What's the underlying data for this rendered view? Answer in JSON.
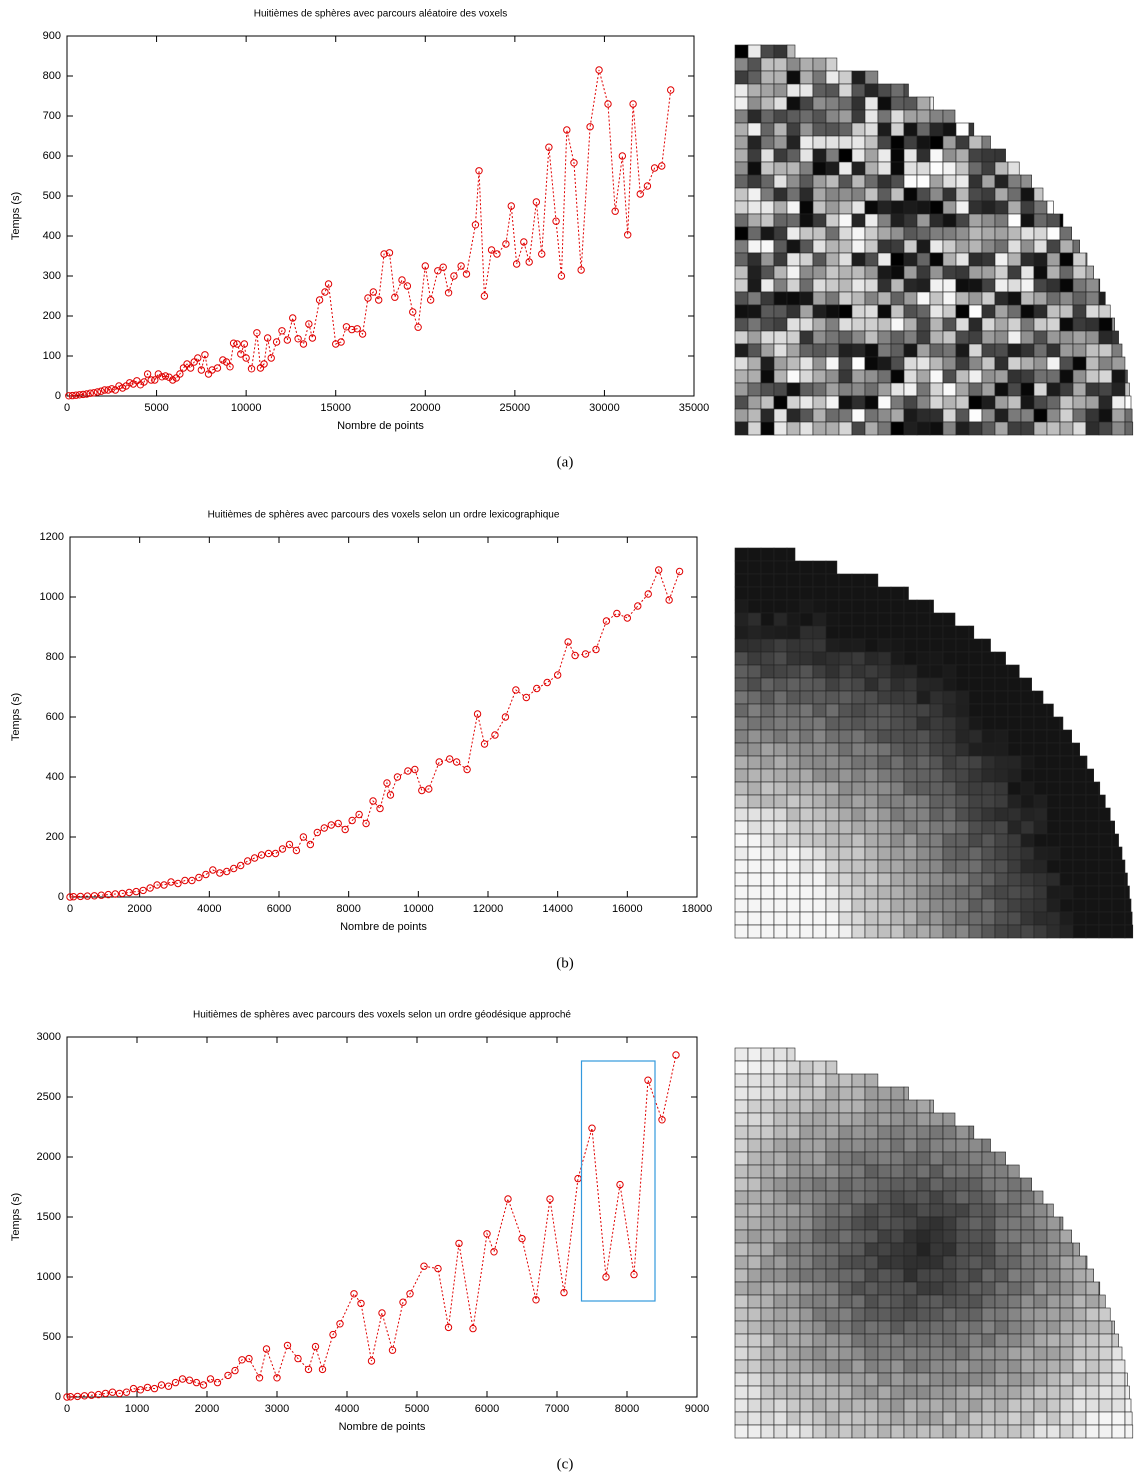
{
  "chart_data": [
    {
      "type": "line",
      "title": "Huitièmes de sphères avec parcours aléatoire des voxels",
      "x_label": "Nombre de points",
      "y_label": "Temps (s)",
      "caption": "(a)",
      "color": "#e00000",
      "xlim": [
        0,
        35000
      ],
      "xticks": [
        0,
        5000,
        10000,
        15000,
        20000,
        25000,
        30000,
        35000
      ],
      "ylim": [
        0,
        900
      ],
      "yticks": [
        0,
        100,
        200,
        300,
        400,
        500,
        600,
        700,
        800,
        900
      ],
      "x": [
        100,
        300,
        500,
        700,
        900,
        1100,
        1300,
        1500,
        1700,
        1900,
        2100,
        2300,
        2500,
        2700,
        2900,
        3100,
        3300,
        3500,
        3700,
        3900,
        4100,
        4300,
        4500,
        4700,
        4900,
        5100,
        5300,
        5500,
        5700,
        5900,
        6100,
        6300,
        6500,
        6700,
        6900,
        7100,
        7300,
        7500,
        7700,
        7900,
        8100,
        8400,
        8700,
        8900,
        9100,
        9300,
        9500,
        9700,
        9900,
        10000,
        10300,
        10600,
        10800,
        11000,
        11200,
        11400,
        11700,
        12000,
        12300,
        12600,
        12900,
        13200,
        13500,
        13700,
        14100,
        14400,
        14600,
        15000,
        15300,
        15600,
        15900,
        16200,
        16500,
        16800,
        17100,
        17400,
        17700,
        18000,
        18300,
        18700,
        19000,
        19300,
        19600,
        20000,
        20300,
        20700,
        21000,
        21300,
        21600,
        22000,
        22300,
        22800,
        23000,
        23300,
        23700,
        24000,
        24500,
        24800,
        25100,
        25500,
        25800,
        26200,
        26500,
        26900,
        27300,
        27600,
        27900,
        28300,
        28700,
        29200,
        29700,
        30200,
        30600,
        31000,
        31300,
        31600,
        32000,
        32400,
        32800,
        33200,
        33700
      ],
      "values": [
        0.5,
        1,
        2,
        3,
        4,
        5,
        7,
        8,
        10,
        12,
        15,
        15,
        18,
        15,
        25,
        20,
        25,
        33,
        30,
        38,
        28,
        35,
        55,
        40,
        40,
        55,
        48,
        50,
        47,
        40,
        45,
        55,
        70,
        80,
        70,
        85,
        95,
        65,
        103,
        55,
        65,
        70,
        90,
        85,
        73,
        132,
        130,
        105,
        130,
        95,
        68,
        158,
        70,
        80,
        145,
        95,
        135,
        163,
        140,
        195,
        143,
        130,
        180,
        145,
        240,
        260,
        280,
        130,
        135,
        173,
        166,
        168,
        155,
        245,
        260,
        240,
        355,
        358,
        247,
        290,
        275,
        210,
        172,
        325,
        240,
        313,
        322,
        258,
        300,
        325,
        305,
        428,
        563,
        250,
        365,
        355,
        380,
        475,
        330,
        385,
        335,
        485,
        355,
        622,
        437,
        300,
        665,
        583,
        315,
        673,
        815,
        730,
        462,
        600,
        403,
        730,
        505,
        525,
        570,
        575,
        765
      ]
    },
    {
      "type": "line",
      "title": "Huitièmes de sphères avec parcours des voxels selon un ordre lexicographique",
      "x_label": "Nombre de points",
      "y_label": "Temps (s)",
      "caption": "(b)",
      "color": "#e00000",
      "xlim": [
        0,
        18000
      ],
      "xticks": [
        0,
        2000,
        4000,
        6000,
        8000,
        10000,
        12000,
        14000,
        16000,
        18000
      ],
      "ylim": [
        0,
        1200
      ],
      "yticks": [
        0,
        200,
        400,
        600,
        800,
        1000,
        1200
      ],
      "x": [
        0,
        100,
        300,
        500,
        700,
        900,
        1100,
        1300,
        1500,
        1700,
        1900,
        2100,
        2300,
        2500,
        2700,
        2900,
        3100,
        3300,
        3500,
        3700,
        3900,
        4100,
        4300,
        4500,
        4700,
        4900,
        5100,
        5300,
        5500,
        5700,
        5900,
        6100,
        6300,
        6500,
        6700,
        6900,
        7100,
        7300,
        7500,
        7700,
        7900,
        8100,
        8300,
        8500,
        8700,
        8900,
        9100,
        9200,
        9400,
        9700,
        9900,
        10100,
        10300,
        10600,
        10900,
        11100,
        11400,
        11700,
        11900,
        12200,
        12500,
        12800,
        13100,
        13400,
        13700,
        14000,
        14300,
        14500,
        14800,
        15100,
        15400,
        15700,
        16000,
        16300,
        16600,
        16900,
        17200,
        17500
      ],
      "values": [
        0,
        1,
        2,
        3,
        4,
        6,
        8,
        10,
        12,
        15,
        18,
        22,
        30,
        40,
        40,
        50,
        45,
        55,
        55,
        65,
        75,
        90,
        80,
        85,
        95,
        105,
        120,
        130,
        140,
        145,
        145,
        160,
        175,
        155,
        200,
        175,
        215,
        230,
        240,
        245,
        225,
        255,
        275,
        245,
        320,
        295,
        380,
        340,
        400,
        420,
        425,
        355,
        360,
        450,
        460,
        450,
        425,
        610,
        510,
        540,
        600,
        690,
        665,
        695,
        715,
        740,
        850,
        805,
        810,
        825,
        920,
        945,
        930,
        970,
        1010,
        1090,
        990,
        1085
      ]
    },
    {
      "type": "line",
      "title": "Huitièmes de sphères avec parcours des voxels selon un ordre géodésique approché",
      "x_label": "Nombre de points",
      "y_label": "Temps (s)",
      "caption": "(c)",
      "color": "#e00000",
      "xlim": [
        0,
        9000
      ],
      "xticks": [
        0,
        1000,
        2000,
        3000,
        4000,
        5000,
        6000,
        7000,
        8000,
        9000
      ],
      "ylim": [
        0,
        3000
      ],
      "yticks": [
        0,
        500,
        1000,
        1500,
        2000,
        2500,
        3000
      ],
      "x": [
        0,
        50,
        150,
        250,
        350,
        450,
        550,
        650,
        750,
        850,
        950,
        1050,
        1150,
        1250,
        1350,
        1450,
        1550,
        1650,
        1750,
        1850,
        1950,
        2050,
        2150,
        2300,
        2400,
        2500,
        2600,
        2750,
        2850,
        3000,
        3150,
        3300,
        3450,
        3550,
        3650,
        3800,
        3900,
        4100,
        4200,
        4350,
        4500,
        4650,
        4800,
        4900,
        5100,
        5300,
        5450,
        5600,
        5800,
        6000,
        6100,
        6300,
        6500,
        6700,
        6900,
        7100,
        7300,
        7500,
        7700,
        7900,
        8100,
        8300,
        8500,
        8700
      ],
      "values": [
        0,
        2,
        5,
        10,
        15,
        20,
        30,
        40,
        30,
        40,
        70,
        60,
        80,
        70,
        100,
        90,
        120,
        150,
        140,
        120,
        100,
        150,
        120,
        180,
        220,
        310,
        320,
        160,
        400,
        160,
        430,
        320,
        230,
        420,
        230,
        520,
        610,
        860,
        780,
        300,
        700,
        390,
        790,
        860,
        1090,
        1070,
        580,
        1280,
        570,
        1360,
        1210,
        1650,
        1320,
        810,
        1650,
        870,
        1820,
        2240,
        1000,
        1770,
        1020,
        2640,
        2310,
        2850
      ],
      "highlight_box": {
        "x": [
          7350,
          8400
        ],
        "y": [
          800,
          2800
        ],
        "color": "#3399dd"
      }
    }
  ]
}
